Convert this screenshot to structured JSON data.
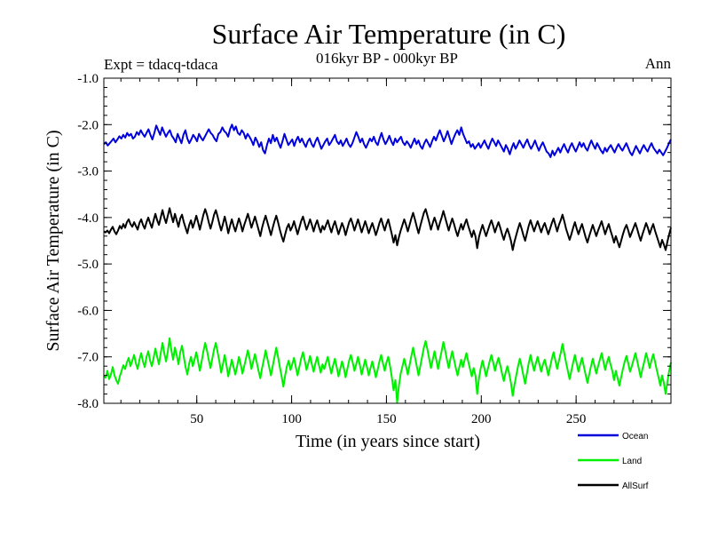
{
  "chart_data": {
    "type": "line",
    "title": "Surface Air Temperature (in C)",
    "subtitle": "016kyr BP - 000kyr BP",
    "left_note": "Expt = tdacq-tdaca",
    "right_note": "Ann",
    "xlabel": "Time (in years since start)",
    "ylabel": "Surface Air Temperature (in C)",
    "xlim": [
      1,
      300
    ],
    "ylim": [
      -8.0,
      -1.0
    ],
    "x_ticks": [
      50,
      100,
      150,
      200,
      250
    ],
    "x_tick_labels": [
      "50",
      "100",
      "150",
      "200",
      "250"
    ],
    "y_ticks": [
      -1.0,
      -2.0,
      -3.0,
      -4.0,
      -5.0,
      -6.0,
      -7.0,
      -8.0
    ],
    "y_tick_labels": [
      "-1.0",
      "-2.0",
      "-3.0",
      "-4.0",
      "-5.0",
      "-6.0",
      "-7.0",
      "-8.0"
    ],
    "legend_position": "bottom-right outside",
    "series": [
      {
        "name": "Ocean",
        "color": "#0000dd",
        "approx_mean": -2.35,
        "values": [
          -2.42,
          -2.38,
          -2.45,
          -2.4,
          -2.35,
          -2.3,
          -2.38,
          -2.32,
          -2.25,
          -2.3,
          -2.22,
          -2.28,
          -2.18,
          -2.24,
          -2.2,
          -2.3,
          -2.26,
          -2.16,
          -2.22,
          -2.12,
          -2.2,
          -2.26,
          -2.18,
          -2.1,
          -2.22,
          -2.32,
          -2.18,
          -2.02,
          -2.12,
          -2.22,
          -2.06,
          -2.16,
          -2.26,
          -2.18,
          -2.12,
          -2.24,
          -2.3,
          -2.38,
          -2.2,
          -2.3,
          -2.4,
          -2.22,
          -2.12,
          -2.3,
          -2.4,
          -2.32,
          -2.22,
          -2.28,
          -2.36,
          -2.2,
          -2.28,
          -2.34,
          -2.26,
          -2.18,
          -2.1,
          -2.18,
          -2.22,
          -2.3,
          -2.36,
          -2.2,
          -2.16,
          -2.06,
          -2.14,
          -2.18,
          -2.26,
          -2.1,
          -2.0,
          -2.12,
          -2.04,
          -2.18,
          -2.22,
          -2.12,
          -2.18,
          -2.3,
          -2.2,
          -2.26,
          -2.34,
          -2.44,
          -2.28,
          -2.36,
          -2.48,
          -2.38,
          -2.55,
          -2.62,
          -2.44,
          -2.3,
          -2.4,
          -2.22,
          -2.36,
          -2.28,
          -2.4,
          -2.5,
          -2.36,
          -2.2,
          -2.32,
          -2.44,
          -2.38,
          -2.32,
          -2.46,
          -2.34,
          -2.26,
          -2.38,
          -2.3,
          -2.4,
          -2.48,
          -2.36,
          -2.3,
          -2.42,
          -2.48,
          -2.36,
          -2.28,
          -2.4,
          -2.52,
          -2.44,
          -2.36,
          -2.3,
          -2.44,
          -2.38,
          -2.3,
          -2.22,
          -2.36,
          -2.42,
          -2.34,
          -2.46,
          -2.38,
          -2.3,
          -2.42,
          -2.48,
          -2.4,
          -2.28,
          -2.16,
          -2.26,
          -2.38,
          -2.3,
          -2.42,
          -2.5,
          -2.4,
          -2.3,
          -2.36,
          -2.26,
          -2.38,
          -2.44,
          -2.3,
          -2.18,
          -2.32,
          -2.42,
          -2.34,
          -2.24,
          -2.36,
          -2.44,
          -2.3,
          -2.38,
          -2.32,
          -2.26,
          -2.38,
          -2.44,
          -2.36,
          -2.42,
          -2.5,
          -2.4,
          -2.3,
          -2.42,
          -2.34,
          -2.46,
          -2.52,
          -2.4,
          -2.32,
          -2.4,
          -2.48,
          -2.36,
          -2.26,
          -2.34,
          -2.22,
          -2.12,
          -2.24,
          -2.36,
          -2.26,
          -2.14,
          -2.28,
          -2.42,
          -2.3,
          -2.2,
          -2.12,
          -2.22,
          -2.06,
          -2.2,
          -2.3,
          -2.4,
          -2.36,
          -2.48,
          -2.42,
          -2.52,
          -2.46,
          -2.4,
          -2.5,
          -2.42,
          -2.34,
          -2.44,
          -2.52,
          -2.4,
          -2.3,
          -2.38,
          -2.46,
          -2.34,
          -2.42,
          -2.5,
          -2.58,
          -2.44,
          -2.52,
          -2.64,
          -2.5,
          -2.4,
          -2.52,
          -2.44,
          -2.34,
          -2.42,
          -2.5,
          -2.4,
          -2.32,
          -2.44,
          -2.52,
          -2.44,
          -2.34,
          -2.46,
          -2.56,
          -2.46,
          -2.38,
          -2.48,
          -2.58,
          -2.62,
          -2.7,
          -2.56,
          -2.66,
          -2.58,
          -2.5,
          -2.6,
          -2.5,
          -2.42,
          -2.52,
          -2.6,
          -2.48,
          -2.4,
          -2.5,
          -2.58,
          -2.48,
          -2.38,
          -2.48,
          -2.4,
          -2.5,
          -2.56,
          -2.44,
          -2.34,
          -2.44,
          -2.52,
          -2.4,
          -2.48,
          -2.56,
          -2.62,
          -2.5,
          -2.58,
          -2.5,
          -2.44,
          -2.52,
          -2.6,
          -2.5,
          -2.42,
          -2.5,
          -2.56,
          -2.48,
          -2.4,
          -2.5,
          -2.6,
          -2.66,
          -2.56,
          -2.46,
          -2.54,
          -2.62,
          -2.52,
          -2.44,
          -2.52,
          -2.58,
          -2.48,
          -2.4,
          -2.5,
          -2.56,
          -2.62,
          -2.54,
          -2.6,
          -2.66,
          -2.58,
          -2.5,
          -2.4,
          -2.32
        ]
      },
      {
        "name": "Land",
        "color": "#00ee00",
        "approx_mean": -7.15,
        "values": [
          -7.4,
          -7.45,
          -7.3,
          -7.48,
          -7.38,
          -7.22,
          -7.4,
          -7.5,
          -7.58,
          -7.42,
          -7.3,
          -7.18,
          -7.26,
          -7.12,
          -7.02,
          -7.2,
          -7.08,
          -6.96,
          -7.14,
          -7.26,
          -7.06,
          -6.92,
          -7.1,
          -7.22,
          -7.0,
          -6.88,
          -7.08,
          -7.2,
          -7.02,
          -6.82,
          -7.0,
          -7.16,
          -6.92,
          -6.7,
          -6.92,
          -7.1,
          -6.88,
          -6.6,
          -6.86,
          -7.06,
          -6.8,
          -6.96,
          -7.16,
          -6.9,
          -6.76,
          -7.0,
          -7.22,
          -7.38,
          -7.14,
          -7.0,
          -7.2,
          -7.06,
          -6.9,
          -7.1,
          -7.3,
          -7.1,
          -6.88,
          -6.7,
          -6.86,
          -7.06,
          -7.24,
          -7.04,
          -6.84,
          -6.7,
          -6.9,
          -7.1,
          -7.34,
          -7.16,
          -6.96,
          -7.18,
          -7.42,
          -7.24,
          -7.06,
          -7.22,
          -7.38,
          -7.2,
          -7.0,
          -7.16,
          -7.36,
          -7.2,
          -7.02,
          -6.86,
          -7.04,
          -7.26,
          -7.1,
          -6.94,
          -7.12,
          -7.3,
          -7.46,
          -7.24,
          -7.06,
          -6.86,
          -7.04,
          -7.22,
          -7.4,
          -7.2,
          -7.0,
          -6.8,
          -7.0,
          -7.22,
          -7.42,
          -7.64,
          -7.4,
          -7.2,
          -7.08,
          -7.28,
          -7.16,
          -7.02,
          -7.22,
          -7.4,
          -7.22,
          -7.04,
          -6.9,
          -7.08,
          -7.28,
          -7.14,
          -6.98,
          -7.16,
          -7.32,
          -7.14,
          -7.0,
          -7.18,
          -7.34,
          -7.16,
          -7.26,
          -7.12,
          -7.0,
          -7.2,
          -7.36,
          -7.18,
          -7.04,
          -7.22,
          -7.42,
          -7.26,
          -7.1,
          -7.24,
          -7.44,
          -7.26,
          -7.08,
          -6.96,
          -7.12,
          -7.3,
          -7.16,
          -7.0,
          -7.18,
          -7.38,
          -7.22,
          -7.06,
          -7.22,
          -7.4,
          -7.24,
          -7.1,
          -7.26,
          -7.44,
          -7.28,
          -7.1,
          -6.96,
          -7.14,
          -7.3,
          -7.12,
          -7.0,
          -7.2,
          -7.44,
          -7.72,
          -7.5,
          -7.98,
          -7.62,
          -7.36,
          -7.2,
          -7.04,
          -7.2,
          -7.38,
          -7.18,
          -6.98,
          -6.8,
          -7.0,
          -7.2,
          -7.4,
          -7.2,
          -7.0,
          -6.8,
          -6.66,
          -6.84,
          -7.04,
          -7.24,
          -7.06,
          -6.88,
          -7.06,
          -7.26,
          -7.06,
          -6.88,
          -6.68,
          -6.86,
          -7.06,
          -7.24,
          -7.04,
          -6.88,
          -7.06,
          -7.24,
          -7.4,
          -7.22,
          -7.06,
          -7.22,
          -7.06,
          -6.92,
          -7.1,
          -7.26,
          -7.42,
          -7.24,
          -7.4,
          -7.8,
          -7.46,
          -7.24,
          -7.08,
          -7.24,
          -7.42,
          -7.26,
          -7.1,
          -6.96,
          -7.12,
          -7.3,
          -7.14,
          -7.02,
          -7.18,
          -7.36,
          -7.52,
          -7.34,
          -7.2,
          -7.36,
          -7.56,
          -7.84,
          -7.6,
          -7.4,
          -7.2,
          -7.04,
          -7.2,
          -7.4,
          -7.58,
          -7.36,
          -7.14,
          -6.96,
          -7.14,
          -7.3,
          -7.14,
          -7.0,
          -7.16,
          -7.32,
          -7.16,
          -7.06,
          -7.22,
          -7.4,
          -7.22,
          -7.04,
          -6.9,
          -7.08,
          -7.26,
          -7.08,
          -6.92,
          -6.72,
          -6.92,
          -7.12,
          -7.3,
          -7.48,
          -7.3,
          -7.12,
          -6.96,
          -7.14,
          -7.32,
          -7.16,
          -7.02,
          -7.2,
          -7.38,
          -7.56,
          -7.38,
          -7.2,
          -7.04,
          -7.2,
          -7.36,
          -7.2,
          -7.06,
          -6.92,
          -7.1,
          -7.28,
          -7.12,
          -7.0,
          -7.16,
          -7.3,
          -7.5,
          -7.3,
          -7.46,
          -7.62,
          -7.44,
          -7.26,
          -7.1,
          -6.98,
          -7.14,
          -7.32,
          -7.2,
          -7.06,
          -6.92,
          -7.08,
          -7.26,
          -7.44,
          -7.26,
          -7.1,
          -6.92,
          -7.06,
          -7.24,
          -7.08,
          -6.94,
          -7.1,
          -7.28,
          -7.44,
          -7.62,
          -7.4,
          -7.56,
          -7.8,
          -7.54,
          -7.3,
          -7.12
        ]
      },
      {
        "name": "AllSurf",
        "color": "#000000",
        "approx_mean": -4.3,
        "values": [
          -4.3,
          -4.32,
          -4.28,
          -4.34,
          -4.26,
          -4.2,
          -4.3,
          -4.36,
          -4.28,
          -4.18,
          -4.24,
          -4.14,
          -4.22,
          -4.1,
          -4.04,
          -4.14,
          -4.2,
          -4.1,
          -4.18,
          -4.26,
          -4.12,
          -4.04,
          -4.16,
          -4.24,
          -4.1,
          -4.0,
          -4.12,
          -4.22,
          -4.06,
          -3.92,
          -4.06,
          -4.16,
          -4.0,
          -3.84,
          -4.0,
          -4.12,
          -3.96,
          -3.8,
          -3.96,
          -4.1,
          -3.92,
          -4.06,
          -4.2,
          -4.02,
          -3.94,
          -4.1,
          -4.22,
          -4.34,
          -4.16,
          -4.06,
          -4.22,
          -4.1,
          -3.96,
          -4.1,
          -4.26,
          -4.1,
          -3.94,
          -3.82,
          -3.94,
          -4.1,
          -4.24,
          -4.1,
          -3.94,
          -3.84,
          -3.98,
          -4.14,
          -4.28,
          -4.14,
          -3.98,
          -4.14,
          -4.34,
          -4.18,
          -4.04,
          -4.18,
          -4.3,
          -4.16,
          -4.02,
          -4.14,
          -4.3,
          -4.16,
          -4.04,
          -3.92,
          -4.06,
          -4.22,
          -4.1,
          -3.98,
          -4.12,
          -4.26,
          -4.4,
          -4.22,
          -4.08,
          -3.96,
          -4.1,
          -4.24,
          -4.38,
          -4.22,
          -4.08,
          -3.96,
          -4.1,
          -4.26,
          -4.4,
          -4.52,
          -4.36,
          -4.22,
          -4.14,
          -4.28,
          -4.2,
          -4.08,
          -4.22,
          -4.36,
          -4.22,
          -4.08,
          -3.98,
          -4.12,
          -4.26,
          -4.16,
          -4.04,
          -4.16,
          -4.3,
          -4.16,
          -4.06,
          -4.2,
          -4.32,
          -4.18,
          -4.26,
          -4.16,
          -4.06,
          -4.2,
          -4.32,
          -4.18,
          -4.08,
          -4.22,
          -4.36,
          -4.24,
          -4.12,
          -4.22,
          -4.38,
          -4.24,
          -4.1,
          -4.02,
          -4.14,
          -4.28,
          -4.16,
          -4.04,
          -4.18,
          -4.32,
          -4.2,
          -4.08,
          -4.2,
          -4.34,
          -4.22,
          -4.12,
          -4.24,
          -4.38,
          -4.26,
          -4.12,
          -4.02,
          -4.16,
          -4.28,
          -4.14,
          -4.04,
          -4.2,
          -4.36,
          -4.54,
          -4.38,
          -4.6,
          -4.42,
          -4.28,
          -4.16,
          -4.04,
          -4.16,
          -4.3,
          -4.16,
          -4.02,
          -3.9,
          -4.04,
          -4.2,
          -4.34,
          -4.18,
          -4.04,
          -3.9,
          -3.82,
          -3.96,
          -4.1,
          -4.26,
          -4.12,
          -4.0,
          -4.12,
          -4.26,
          -4.12,
          -4.0,
          -3.86,
          -4.0,
          -4.14,
          -4.28,
          -4.14,
          -4.02,
          -4.14,
          -4.28,
          -4.4,
          -4.26,
          -4.14,
          -4.26,
          -4.14,
          -4.04,
          -4.18,
          -4.3,
          -4.42,
          -4.28,
          -4.4,
          -4.66,
          -4.42,
          -4.28,
          -4.16,
          -4.28,
          -4.4,
          -4.28,
          -4.16,
          -4.06,
          -4.18,
          -4.32,
          -4.2,
          -4.1,
          -4.22,
          -4.36,
          -4.48,
          -4.34,
          -4.24,
          -4.36,
          -4.5,
          -4.7,
          -4.52,
          -4.38,
          -4.24,
          -4.12,
          -4.24,
          -4.38,
          -4.5,
          -4.34,
          -4.18,
          -4.06,
          -4.18,
          -4.3,
          -4.18,
          -4.08,
          -4.2,
          -4.32,
          -4.2,
          -4.12,
          -4.24,
          -4.36,
          -4.24,
          -4.12,
          -4.02,
          -4.16,
          -4.3,
          -4.16,
          -4.06,
          -3.94,
          -4.08,
          -4.24,
          -4.36,
          -4.48,
          -4.36,
          -4.22,
          -4.1,
          -4.24,
          -4.36,
          -4.24,
          -4.14,
          -4.28,
          -4.42,
          -4.54,
          -4.4,
          -4.28,
          -4.16,
          -4.28,
          -4.4,
          -4.28,
          -4.18,
          -4.08,
          -4.22,
          -4.36,
          -4.24,
          -4.14,
          -4.28,
          -4.4,
          -4.54,
          -4.4,
          -4.52,
          -4.64,
          -4.5,
          -4.36,
          -4.24,
          -4.16,
          -4.28,
          -4.42,
          -4.32,
          -4.22,
          -4.12,
          -4.24,
          -4.38,
          -4.5,
          -4.36,
          -4.24,
          -4.12,
          -4.22,
          -4.36,
          -4.24,
          -4.14,
          -4.28,
          -4.4,
          -4.52,
          -4.64,
          -4.48,
          -4.58,
          -4.7,
          -4.52,
          -4.36,
          -4.22
        ]
      }
    ]
  }
}
